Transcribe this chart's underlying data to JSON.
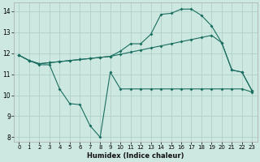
{
  "title": "",
  "xlabel": "Humidex (Indice chaleur)",
  "ylabel": "",
  "background_color": "#cce8e0",
  "grid_color": "#b0d0c8",
  "line_color": "#1a6e60",
  "xlim": [
    -0.5,
    23.5
  ],
  "ylim": [
    7.8,
    14.4
  ],
  "xticks": [
    0,
    1,
    2,
    3,
    4,
    5,
    6,
    7,
    8,
    9,
    10,
    11,
    12,
    13,
    14,
    15,
    16,
    17,
    18,
    19,
    20,
    21,
    22,
    23
  ],
  "yticks": [
    8,
    9,
    10,
    11,
    12,
    13,
    14
  ],
  "line1_x": [
    0,
    1,
    2,
    3,
    4,
    5,
    6,
    7,
    8,
    9,
    10,
    11,
    12,
    13,
    14,
    15,
    16,
    17,
    18,
    19,
    20,
    21,
    22,
    23
  ],
  "line1_y": [
    11.9,
    11.65,
    11.45,
    11.45,
    10.3,
    9.6,
    9.55,
    8.55,
    8.0,
    11.1,
    10.3,
    10.3,
    10.3,
    10.3,
    10.3,
    10.3,
    10.3,
    10.3,
    10.3,
    10.3,
    10.3,
    10.3,
    10.3,
    10.15
  ],
  "line2_x": [
    0,
    1,
    2,
    3,
    4,
    5,
    6,
    7,
    8,
    9,
    10,
    11,
    12,
    13,
    14,
    15,
    16,
    17,
    18,
    19,
    20,
    21,
    22,
    23
  ],
  "line2_y": [
    11.9,
    11.65,
    11.5,
    11.55,
    11.6,
    11.65,
    11.7,
    11.75,
    11.8,
    11.85,
    11.95,
    12.05,
    12.15,
    12.25,
    12.35,
    12.45,
    12.55,
    12.65,
    12.75,
    12.85,
    12.5,
    11.2,
    11.1,
    10.2
  ],
  "line3_x": [
    0,
    1,
    2,
    3,
    4,
    5,
    6,
    7,
    8,
    9,
    10,
    11,
    12,
    13,
    14,
    15,
    16,
    17,
    18,
    19,
    20,
    21,
    22,
    23
  ],
  "line3_y": [
    11.9,
    11.65,
    11.5,
    11.55,
    11.6,
    11.65,
    11.7,
    11.75,
    11.8,
    11.85,
    12.1,
    12.45,
    12.45,
    12.9,
    13.85,
    13.9,
    14.1,
    14.1,
    13.8,
    13.3,
    12.5,
    11.2,
    11.1,
    10.2
  ]
}
